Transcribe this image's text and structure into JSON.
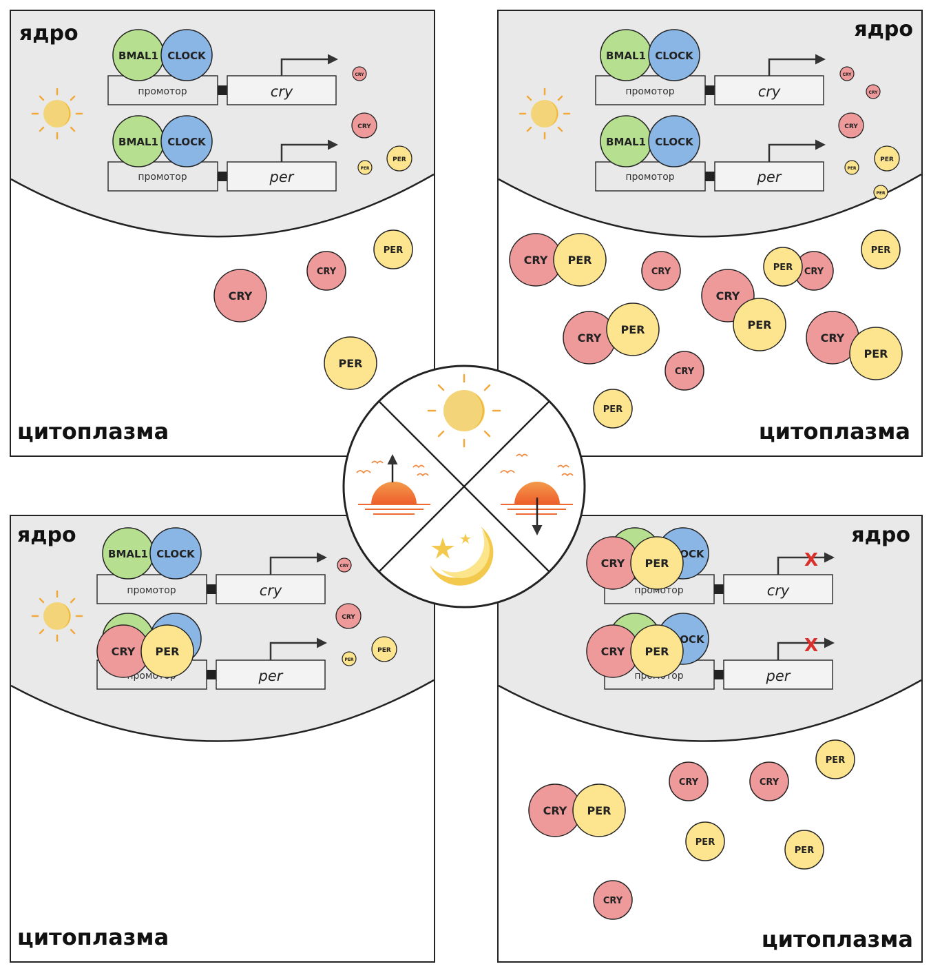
{
  "labels": {
    "nucleus": "ядро",
    "cytoplasm": "цитоплазма",
    "promoter": "промотор",
    "gene_cry": "cry",
    "gene_per": "per",
    "bmal1": "BMAL1",
    "clock": "CLOCK",
    "clock_partial": "OCK",
    "cry": "CRY",
    "per": "PER",
    "blocked": "X"
  },
  "colors": {
    "cry": "#ef9a9a",
    "per": "#fde58f",
    "bmal1": "#b6e08f",
    "clock": "#8ab6e6",
    "nucleus_fill": "#e9e9e9",
    "sun": "#f3d478",
    "sun_rays": "#f2a83a",
    "sunset": "#f07a3a",
    "block": "#d9302c"
  },
  "phases": [
    "sunrise",
    "day",
    "sunset",
    "night"
  ]
}
